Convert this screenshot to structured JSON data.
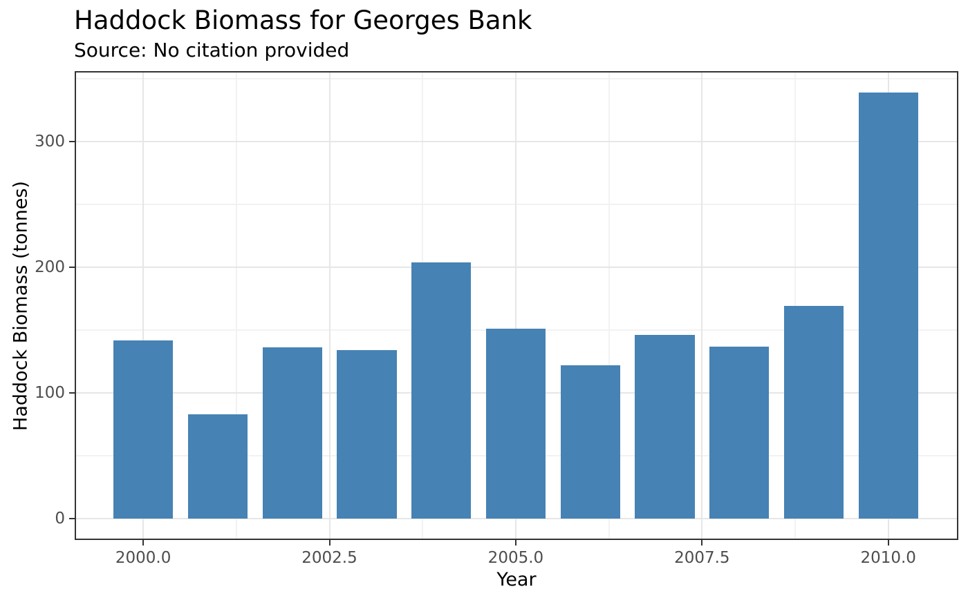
{
  "chart_data": {
    "type": "bar",
    "title": "Haddock Biomass for Georges Bank",
    "subtitle": "Source: No citation provided",
    "xlabel": "Year",
    "ylabel": "Haddock Biomass (tonnes)",
    "x": [
      2000,
      2001,
      2002,
      2003,
      2004,
      2005,
      2006,
      2007,
      2008,
      2009,
      2010
    ],
    "values": [
      142,
      83,
      136,
      134,
      204,
      151,
      122,
      146,
      137,
      169,
      339
    ],
    "bar_width_years": 0.8,
    "xlim": [
      1999.08,
      2010.94
    ],
    "ylim": [
      -16.95,
      355.95
    ],
    "x_ticks": {
      "values": [
        2000,
        2002.5,
        2005,
        2007.5,
        2010
      ],
      "labels": [
        "2000.0",
        "2002.5",
        "2005.0",
        "2007.5",
        "2010.0"
      ]
    },
    "y_ticks": {
      "values": [
        0,
        100,
        200,
        300
      ],
      "labels": [
        "0",
        "100",
        "200",
        "300"
      ]
    },
    "x_minor_ticks": [
      2001.25,
      2003.75,
      2006.25,
      2008.75
    ],
    "y_minor_ticks": [
      50,
      150,
      250,
      350
    ],
    "grid": true,
    "legend": "none",
    "colors": {
      "bar": "#4682B4",
      "grid_major": "#E6E6E6",
      "grid_minor": "#F2F2F2",
      "panel_border": "#333333",
      "tick_mark": "#333333",
      "tick_label": "#4D4D4D",
      "title_text": "#000000",
      "background": "#FFFFFF"
    }
  }
}
